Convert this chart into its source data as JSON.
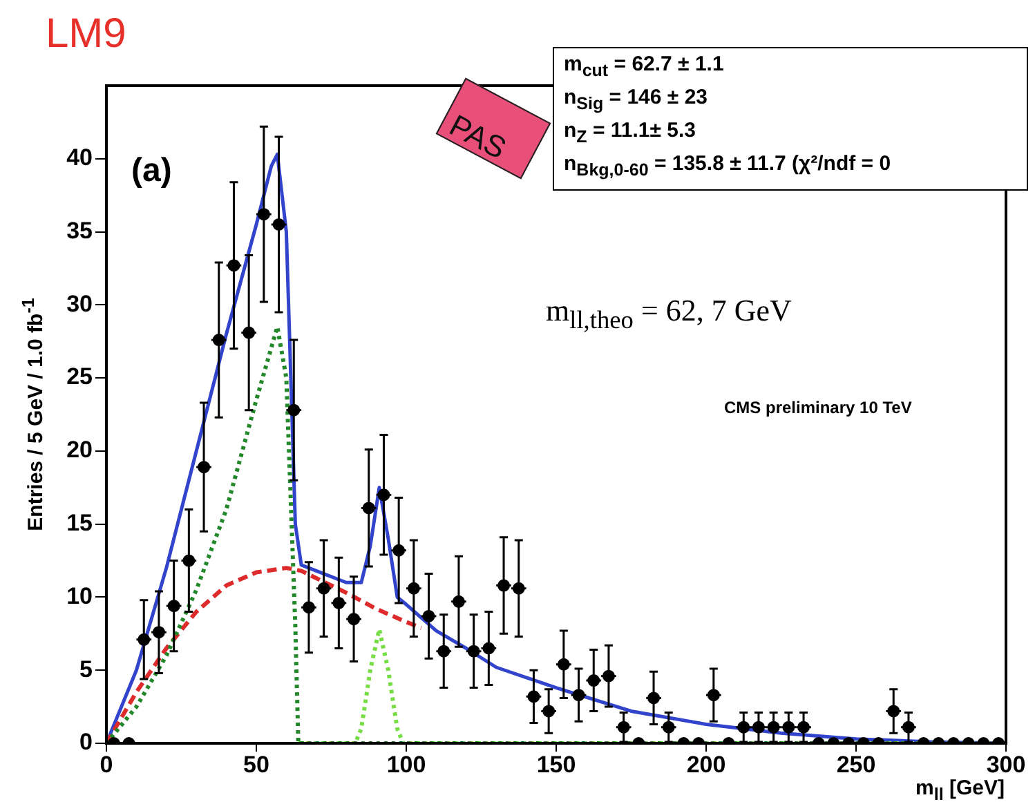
{
  "chart_data": {
    "type": "scatter",
    "title": "LM9",
    "xlabel": "m$_{ll}$ [GeV]",
    "ylabel": "Entries / 5 GeV / 1.0 fb$^{-1}$",
    "xlim": [
      0,
      300
    ],
    "xticks": [
      0,
      50,
      100,
      150,
      200,
      250,
      300
    ],
    "ylim": [
      0,
      45
    ],
    "yticks": [
      0,
      5,
      10,
      15,
      20,
      25,
      30,
      35,
      40
    ],
    "grid": false,
    "legend": false,
    "annotations": [
      "(a)",
      "PAS",
      "m$_{cut}$ = 62.7 ± 1.1",
      "n$_{Sig}$ = 146 ± 23",
      "n$_{Z}$ = 11.1± 5.3",
      "n$_{Bkg,0-60}$ = 135.8 ± 11.7 (χ²/ndf = 0",
      "m$_{ll,theo}$ = 62, 7 GeV",
      "CMS preliminary 10 TeV"
    ],
    "series": [
      {
        "type": "line",
        "color": "#22882a",
        "line_style": "dotted",
        "x": [
          0,
          10,
          20,
          30,
          40,
          50,
          57,
          60,
          63,
          64,
          300
        ],
        "values": [
          0,
          2.5,
          6,
          10.5,
          16,
          23.5,
          28.5,
          25,
          8,
          0,
          0
        ]
      },
      {
        "type": "line",
        "color": "#dd2a2a",
        "line_style": "dashed",
        "x": [
          0,
          10,
          20,
          30,
          40,
          50,
          60,
          65,
          70,
          80,
          90,
          100,
          105
        ],
        "values": [
          0,
          3.5,
          6.5,
          9,
          10.8,
          11.7,
          12,
          11.8,
          11.3,
          10.3,
          9.2,
          8.3,
          7.9
        ]
      },
      {
        "type": "line",
        "color": "#77dd44",
        "line_style": "dotted",
        "x": [
          64,
          83,
          85,
          88,
          91,
          94,
          97,
          99,
          300
        ],
        "values": [
          0,
          0,
          1,
          5,
          7.8,
          5,
          1,
          0,
          0
        ]
      },
      {
        "type": "line",
        "color": "#3344cc",
        "line_style": "solid",
        "x": [
          0,
          10,
          20,
          30,
          40,
          50,
          55,
          57,
          60,
          63,
          65,
          70,
          80,
          85,
          88,
          91,
          94,
          97,
          100,
          110,
          120,
          130,
          150,
          175,
          200,
          225,
          250,
          275,
          300
        ],
        "values": [
          0,
          5,
          12,
          20,
          28,
          35.5,
          39.5,
          40.3,
          35,
          15,
          12.2,
          11.8,
          11,
          11,
          13.5,
          17.5,
          14,
          10,
          9.5,
          7.7,
          6.5,
          5.2,
          3.8,
          2.2,
          1.3,
          0.7,
          0.3,
          0.1,
          0
        ]
      },
      {
        "color": "#000000",
        "marker": "circle",
        "x": [
          2.5,
          7.5,
          12.5,
          17.5,
          22.5,
          27.5,
          32.5,
          37.5,
          42.5,
          47.5,
          52.5,
          57.5,
          62.5,
          67.5,
          72.5,
          77.5,
          82.5,
          87.5,
          92.5,
          97.5,
          102.5,
          107.5,
          112.5,
          117.5,
          122.5,
          127.5,
          132.5,
          137.5,
          142.5,
          147.5,
          152.5,
          157.5,
          162.5,
          167.5,
          172.5,
          177.5,
          182.5,
          187.5,
          192.5,
          197.5,
          202.5,
          207.5,
          212.5,
          217.5,
          222.5,
          227.5,
          232.5,
          237.5,
          242.5,
          247.5,
          252.5,
          257.5,
          262.5,
          267.5,
          272.5,
          277.5,
          282.5,
          287.5,
          292.5,
          297.5
        ],
        "values": [
          0,
          0,
          7.1,
          7.6,
          9.4,
          12.5,
          18.9,
          27.6,
          32.7,
          28.1,
          36.2,
          35.5,
          22.8,
          9.3,
          10.6,
          9.6,
          8.5,
          16.1,
          17.0,
          13.2,
          10.6,
          8.7,
          6.3,
          9.7,
          6.3,
          6.5,
          10.8,
          10.6,
          3.2,
          2.2,
          5.4,
          3.3,
          4.3,
          4.6,
          1.1,
          0,
          3.1,
          1.1,
          0,
          0,
          3.3,
          0,
          1.1,
          1.1,
          1.1,
          1.1,
          1.1,
          0,
          0,
          0,
          0,
          0,
          2.2,
          1.1,
          0,
          0,
          0,
          0,
          0,
          0
        ],
        "errors": [
          null,
          null,
          2.7,
          2.8,
          3.1,
          3.5,
          4.4,
          5.3,
          5.7,
          5.3,
          6.0,
          6.0,
          4.8,
          3.1,
          3.3,
          3.1,
          2.9,
          4.0,
          4.1,
          3.6,
          3.3,
          2.9,
          2.5,
          3.1,
          2.5,
          2.5,
          3.3,
          3.3,
          1.8,
          1.5,
          2.3,
          1.8,
          2.1,
          2.1,
          1.0,
          null,
          1.8,
          1.0,
          null,
          null,
          1.8,
          null,
          1.0,
          1.0,
          1.0,
          1.0,
          1.0,
          null,
          null,
          null,
          null,
          null,
          1.5,
          1.0,
          null,
          null,
          null,
          null,
          null,
          null
        ],
        "xerrors": [
          2.5,
          2.5,
          2.5,
          2.5,
          2.5,
          2.5,
          2.5,
          2.5,
          2.5,
          2.5,
          2.5,
          2.5,
          2.5,
          2.5,
          2.5,
          2.5,
          2.5,
          2.5,
          2.5,
          2.5,
          2.5,
          2.5,
          2.5,
          2.5,
          2.5,
          2.5,
          2.5,
          2.5,
          2.5,
          2.5,
          2.5,
          2.5,
          2.5,
          2.5,
          2.5,
          2.5,
          2.5,
          2.5,
          2.5,
          2.5,
          2.5,
          2.5,
          2.5,
          2.5,
          2.5,
          2.5,
          2.5,
          2.5,
          2.5,
          2.5,
          2.5,
          2.5,
          2.5,
          2.5,
          2.5,
          2.5,
          2.5,
          2.5,
          2.5,
          2.5
        ]
      }
    ]
  }
}
